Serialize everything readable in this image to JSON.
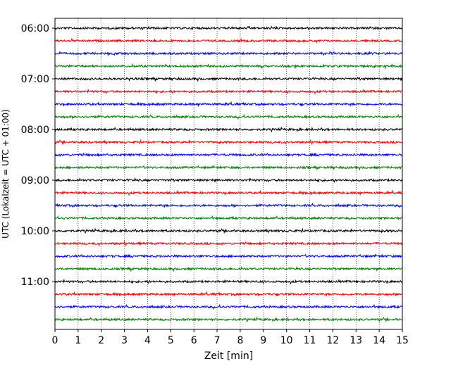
{
  "chart_data": {
    "type": "line",
    "title": "",
    "xlabel": "Zeit  [min]",
    "ylabel": "UTC (Lokalzeit = UTC + 01:00)",
    "xlim": [
      0,
      15
    ],
    "x_ticks": [
      "0",
      "1",
      "2",
      "3",
      "4",
      "5",
      "6",
      "7",
      "8",
      "9",
      "10",
      "11",
      "12",
      "13",
      "14",
      "15"
    ],
    "y_tick_labels": [
      "06:00",
      "07:00",
      "08:00",
      "09:00",
      "10:00",
      "11:00"
    ],
    "grid": "vertical dotted lines at each minute",
    "colors_cycle": [
      "#000000",
      "#ff0000",
      "#0000ff",
      "#008000"
    ],
    "series": [
      {
        "start": "06:00",
        "color": "#000000"
      },
      {
        "start": "06:15",
        "color": "#ff0000"
      },
      {
        "start": "06:30",
        "color": "#0000ff"
      },
      {
        "start": "06:45",
        "color": "#008000"
      },
      {
        "start": "07:00",
        "color": "#000000"
      },
      {
        "start": "07:15",
        "color": "#ff0000"
      },
      {
        "start": "07:30",
        "color": "#0000ff"
      },
      {
        "start": "07:45",
        "color": "#008000"
      },
      {
        "start": "08:00",
        "color": "#000000"
      },
      {
        "start": "08:15",
        "color": "#ff0000"
      },
      {
        "start": "08:30",
        "color": "#0000ff"
      },
      {
        "start": "08:45",
        "color": "#008000"
      },
      {
        "start": "09:00",
        "color": "#000000"
      },
      {
        "start": "09:15",
        "color": "#ff0000"
      },
      {
        "start": "09:30",
        "color": "#0000ff"
      },
      {
        "start": "09:45",
        "color": "#008000"
      },
      {
        "start": "10:00",
        "color": "#000000"
      },
      {
        "start": "10:15",
        "color": "#ff0000"
      },
      {
        "start": "10:30",
        "color": "#0000ff"
      },
      {
        "start": "10:45",
        "color": "#008000"
      },
      {
        "start": "11:00",
        "color": "#000000"
      },
      {
        "start": "11:15",
        "color": "#ff0000"
      },
      {
        "start": "11:30",
        "color": "#0000ff"
      },
      {
        "start": "11:45",
        "color": "#008000"
      }
    ]
  }
}
